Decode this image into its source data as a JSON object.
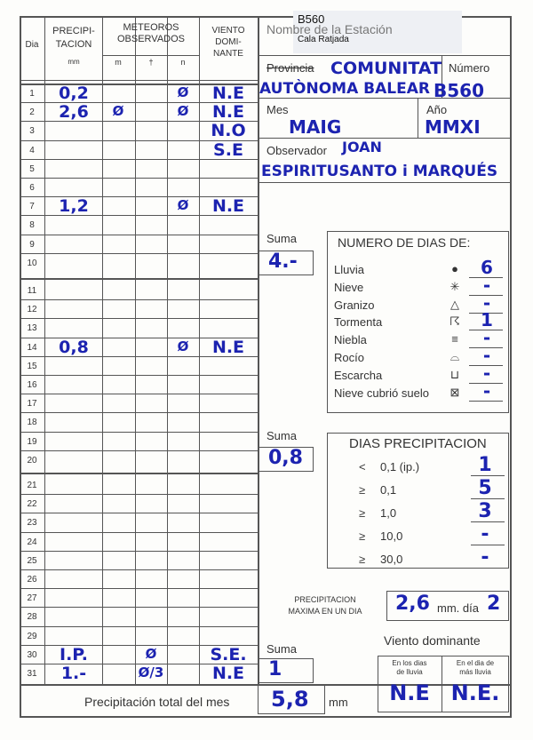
{
  "stamp": {
    "code": "B560",
    "place": "Cala Ratjada"
  },
  "table": {
    "headers": {
      "day": "Dia",
      "precip": [
        "PRECIPI-",
        "TACION"
      ],
      "unit": "mm",
      "meteoros": [
        "METEOROS",
        "OBSERVADOS"
      ],
      "m": "m",
      "cross": "†",
      "n": "n",
      "wind": [
        "VIENTO",
        "DOMI-",
        "NANTE"
      ]
    },
    "rows": [
      {
        "day": "1",
        "precip": "0,2",
        "n": "Ø",
        "wind": "N.E"
      },
      {
        "day": "2",
        "precip": "2,6",
        "m": "Ø",
        "n": "Ø",
        "wind": "N.E"
      },
      {
        "day": "3",
        "wind": "N.O"
      },
      {
        "day": "4",
        "wind": "S.E"
      },
      {
        "day": "5"
      },
      {
        "day": "6"
      },
      {
        "day": "7",
        "precip": "1,2",
        "n": "Ø",
        "wind": "N.E"
      },
      {
        "day": "8"
      },
      {
        "day": "9"
      },
      {
        "day": "10"
      },
      {
        "day": "11"
      },
      {
        "day": "12"
      },
      {
        "day": "13"
      },
      {
        "day": "14",
        "precip": "0,8",
        "n": "Ø",
        "wind": "N.E"
      },
      {
        "day": "15"
      },
      {
        "day": "16"
      },
      {
        "day": "17"
      },
      {
        "day": "18"
      },
      {
        "day": "19"
      },
      {
        "day": "20"
      },
      {
        "day": "21"
      },
      {
        "day": "22"
      },
      {
        "day": "23"
      },
      {
        "day": "24"
      },
      {
        "day": "25"
      },
      {
        "day": "26"
      },
      {
        "day": "27"
      },
      {
        "day": "28"
      },
      {
        "day": "29"
      },
      {
        "day": "30",
        "precip": "I.P.",
        "cross": "Ø",
        "wind": "S.E."
      },
      {
        "day": "31",
        "precip": "1.-",
        "cross": "Ø/3",
        "wind": "N.E"
      }
    ],
    "total": {
      "label": "Precipitación total del mes",
      "value": "5,8",
      "unit": "mm"
    }
  },
  "station": {
    "name_label": "Nombre de la Estación",
    "province_label": "Provincia",
    "province": [
      "COMUNITAT",
      "AUTÒNOMA BALEAR"
    ],
    "number_label": "Número",
    "number": "B560",
    "month_label": "Mes",
    "month": "MAIG",
    "year_label": "Año",
    "year": "MMXI",
    "observer_label": "Observador",
    "observer": [
      "JOAN",
      "ESPIRITUSANTO i MARQUÉS"
    ]
  },
  "sums": [
    {
      "label": "Suma",
      "value": "4.-"
    },
    {
      "label": "Suma",
      "value": "0,8"
    },
    {
      "label": "Suma",
      "value": "1"
    }
  ],
  "days_of": {
    "title": "NUMERO DE DIAS DE:",
    "items": [
      {
        "label": "Lluvia",
        "symbol": "●",
        "value": "6"
      },
      {
        "label": "Nieve",
        "symbol": "✳",
        "value": "-"
      },
      {
        "label": "Granizo",
        "symbol": "△",
        "value": "-"
      },
      {
        "label": "Tormenta",
        "symbol": "☈",
        "value": "1"
      },
      {
        "label": "Niebla",
        "symbol": "≡",
        "value": "-"
      },
      {
        "label": "Rocío",
        "symbol": "⌓",
        "value": "-"
      },
      {
        "label": "Escarcha",
        "symbol": "⊔",
        "value": "-"
      },
      {
        "label": "Nieve cubrió suelo",
        "symbol": "⊠",
        "value": "-"
      }
    ]
  },
  "precip_days": {
    "title": "DIAS PRECIPITACION",
    "items": [
      {
        "symbol": "<",
        "label": "0,1  (ip.)",
        "value": "1"
      },
      {
        "symbol": "≥",
        "label": "0,1",
        "value": "5"
      },
      {
        "symbol": "≥",
        "label": "1,0",
        "value": "3"
      },
      {
        "symbol": "≥",
        "label": "10,0",
        "value": "-"
      },
      {
        "symbol": "≥",
        "label": "30,0",
        "value": "-"
      }
    ]
  },
  "max_precip": {
    "label": [
      "PRECIPITACION",
      "MAXIMA EN UN DIA"
    ],
    "value": "2,6",
    "unit": "mm. día",
    "day": "2"
  },
  "wind": {
    "title": "Viento dominante",
    "rain_days_label": [
      "En los dias",
      "de lluvia"
    ],
    "rain_days": "N.E",
    "max_day_label": [
      "En el dia de",
      "más lluvia"
    ],
    "max_day": "N.E."
  }
}
